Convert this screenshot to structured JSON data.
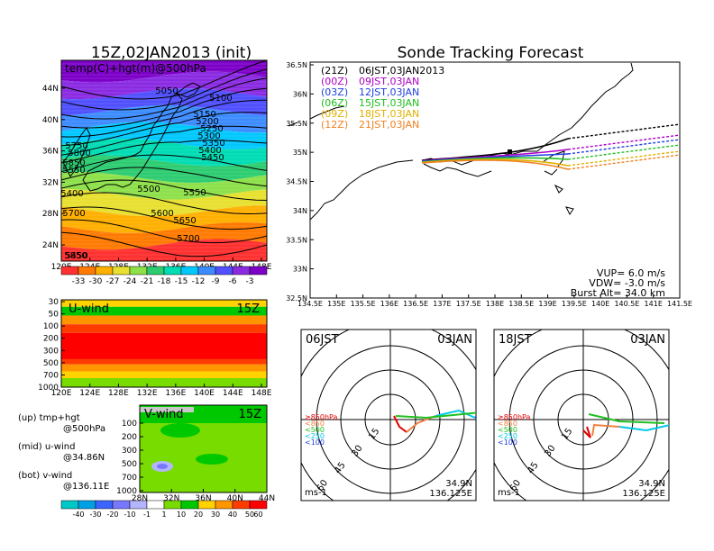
{
  "main_title": "15Z,02JAN2013 (init)",
  "panel_title": "Sonde Tracking Forecast",
  "top_map": {
    "field_label": "temp(C)+hgt(m)@500hPa",
    "lon_ticks": [
      "120E",
      "124E",
      "128E",
      "132E",
      "136E",
      "140E",
      "144E",
      "148E"
    ],
    "lat_ticks": [
      "24N",
      "28N",
      "32N",
      "36N",
      "40N",
      "44N"
    ],
    "contour_labels": [
      "5050",
      "5100",
      "5150",
      "5200",
      "5250",
      "5300",
      "5350",
      "5400",
      "5450",
      "5500",
      "5550",
      "5600",
      "5650",
      "5700",
      "5750",
      "5800",
      "5850",
      "5400",
      "5450",
      "5550",
      "5700",
      "5850"
    ],
    "colorbar_labels": [
      "-33",
      "-30",
      "-27",
      "-24",
      "-21",
      "-18",
      "-15",
      "-12",
      "-9",
      "-6",
      "-3"
    ],
    "colorbar_colors": [
      "#7c00c8",
      "#8a2be2",
      "#5050ff",
      "#3c8cff",
      "#00c8ff",
      "#00dcb4",
      "#2ecc71",
      "#8ee04a",
      "#e8e030",
      "#ffb000",
      "#ff7a00",
      "#ff3030"
    ]
  },
  "u_panel": {
    "label": "U-wind",
    "time": "15Z",
    "y_ticks": [
      "30",
      "50",
      "100",
      "200",
      "300",
      "500",
      "700",
      "1000"
    ],
    "x_ticks": [
      "120E",
      "124E",
      "128E",
      "132E",
      "136E",
      "140E",
      "144E",
      "148E"
    ]
  },
  "v_panel": {
    "label": "V-wind",
    "time": "15Z",
    "y_ticks": [
      "100",
      "200",
      "300",
      "500",
      "700",
      "1000"
    ],
    "x_ticks": [
      "28N",
      "32N",
      "36N",
      "40N",
      "44N"
    ]
  },
  "legend_notes": [
    {
      "a": "(up) tmp+hgt",
      "b": "@500hPa"
    },
    {
      "a": "(mid) u-wind",
      "b": "@34.86N"
    },
    {
      "a": "(bot) v-wind",
      "b": "@136.11E"
    }
  ],
  "wind_colorbar": {
    "labels": [
      "-40",
      "-30",
      "-20",
      "-10",
      "-1",
      "1",
      "10",
      "20",
      "30",
      "40",
      "50",
      "60"
    ],
    "colors": [
      "#00c8c8",
      "#00a0e6",
      "#3c64ff",
      "#7878ff",
      "#b4b4ff",
      "#ffffff",
      "#78dc00",
      "#00c800",
      "#ffd200",
      "#ff9600",
      "#ff3c00",
      "#ff0000"
    ]
  },
  "track_map": {
    "x_ticks": [
      "134.5E",
      "135E",
      "135.5E",
      "136E",
      "136.5E",
      "137E",
      "137.5E",
      "138E",
      "138.5E",
      "139E",
      "139.5E",
      "140E",
      "140.5E",
      "141E",
      "141.5E"
    ],
    "y_ticks": [
      "32.5N",
      "33N",
      "33.5N",
      "34N",
      "34.5N",
      "35N",
      "35.5N",
      "36N",
      "36.5N"
    ],
    "launches": [
      {
        "code": "(21Z)",
        "time": "06JST,03JAN2013",
        "color": "#000000"
      },
      {
        "code": "(00Z)",
        "time": "09JST,03JAN",
        "color": "#b000c8"
      },
      {
        "code": "(03Z)",
        "time": "12JST,03JAN",
        "color": "#2040e0"
      },
      {
        "code": "(06Z)",
        "time": "15JST,03JAN",
        "color": "#20c020"
      },
      {
        "code": "(09Z)",
        "time": "18JST,03JAN",
        "color": "#e0b000"
      },
      {
        "code": "(12Z)",
        "time": "21JST,03JAN",
        "color": "#f08020"
      }
    ],
    "vup": "VUP=  6.0  m/s",
    "vdw": "VDW= -3.0  m/s",
    "burst": "Burst Alt=  34.0  km"
  },
  "polar_left": {
    "time": "06JST",
    "date": "03JAN"
  },
  "polar_right": {
    "time": "18JST",
    "date": "03JAN"
  },
  "polar_common": {
    "ring_labels": [
      "15",
      "30",
      "45",
      "60"
    ],
    "levels": [
      "≥850hPa",
      "<850",
      "<500",
      "<250",
      "<100"
    ],
    "level_colors": [
      "#e00000",
      "#f08040",
      "#20c020",
      "#00c8e6",
      "#2040e0"
    ],
    "unit": "ms-1",
    "lat": "34.9N",
    "lon": "136.125E"
  }
}
